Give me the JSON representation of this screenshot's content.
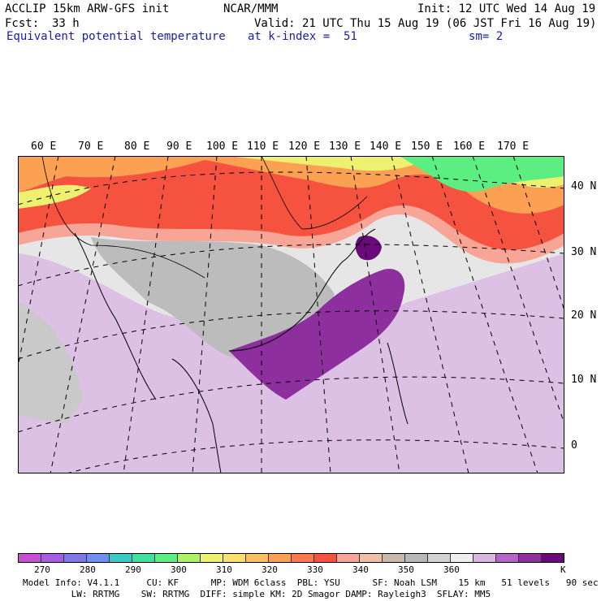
{
  "header": {
    "model": "ACCLIP 15km ARW-GFS init",
    "org": "NCAR/MMM",
    "init": "Init: 12 UTC Wed 14 Aug 19",
    "fcst_label": "Fcst:",
    "fcst_value": "33 h",
    "valid": "Valid: 21 UTC Thu 15 Aug 19 (06 JST Fri 16 Aug 19)",
    "field": "Equivalent potential temperature",
    "level": "at k-index =  51",
    "smoothing": "sm= 2"
  },
  "map": {
    "lon_labels": [
      "60 E",
      "70 E",
      "80 E",
      "90 E",
      "100 E",
      "110 E",
      "120 E",
      "130 E",
      "140 E",
      "150 E",
      "160 E",
      "170 E"
    ],
    "lat_labels": [
      "40 N",
      "30 N",
      "20 N",
      "10 N",
      "0"
    ]
  },
  "colorbar": {
    "colors": [
      "#c64fd0",
      "#a45fe0",
      "#7f78e6",
      "#6e8ff0",
      "#3cc8c4",
      "#3ee0a0",
      "#5cee80",
      "#aef066",
      "#eef070",
      "#fce06e",
      "#fcc060",
      "#fca054",
      "#fa7a4e",
      "#f5533f",
      "#f7a596",
      "#efbfa6",
      "#c8b8a8",
      "#b8b8b8",
      "#d2d2d2",
      "#eeeeee",
      "#d9b6e0",
      "#b565c8",
      "#8e2f9e",
      "#6a0a7a"
    ],
    "labels": [
      "270",
      "280",
      "290",
      "300",
      "310",
      "320",
      "330",
      "340",
      "350",
      "360"
    ],
    "unit": "K"
  },
  "footer": {
    "line1": "Model Info: V4.1.1     CU: KF      MP: WDM 6class  PBL: YSU      SF: Noah LSM    15 km   51 levels   90 sec",
    "line2": "         LW: RRTMG    SW: RRTMG  DIFF: simple KM: 2D Smagor DAMP: Rayleigh3  SFLAY: MM5"
  }
}
